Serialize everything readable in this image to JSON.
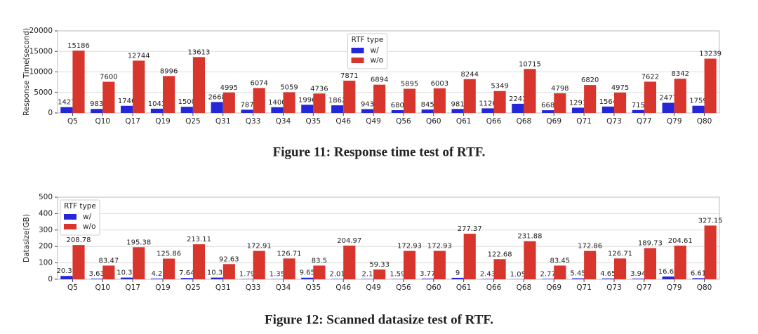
{
  "chart_data": [
    {
      "type": "bar",
      "y_label": "Response Time(second)",
      "caption": "Figure 11: Response time test of RTF.",
      "categories": [
        "Q5",
        "Q10",
        "Q17",
        "Q19",
        "Q25",
        "Q31",
        "Q33",
        "Q34",
        "Q35",
        "Q46",
        "Q49",
        "Q56",
        "Q60",
        "Q61",
        "Q66",
        "Q68",
        "Q69",
        "Q71",
        "Q73",
        "Q77",
        "Q79",
        "Q80"
      ],
      "series": [
        {
          "name": "w/",
          "color": "#2626d9",
          "values": [
            1427,
            983,
            1746,
            1043,
            1500,
            2668,
            787,
            1400,
            1996,
            1862,
            943,
            680,
            845,
            981,
            1126,
            2241,
            668,
            1291,
            1564,
            715,
            2477,
            1759
          ]
        },
        {
          "name": "w/o",
          "color": "#d8352d",
          "values": [
            15186,
            7600,
            12744,
            8996,
            13613,
            4995,
            6074,
            5059,
            4736,
            7871,
            6894,
            5895,
            6003,
            8244,
            5349,
            10715,
            4798,
            6820,
            4975,
            7622,
            8342,
            13239
          ]
        }
      ],
      "ylim": [
        0,
        20000
      ],
      "yticks": [
        0,
        5000,
        10000,
        15000,
        20000
      ],
      "grid": true,
      "legend_title": "RTF type",
      "legend": "upper center"
    },
    {
      "type": "bar",
      "y_label": "Datasize(GB)",
      "caption": "Figure 12: Scanned datasize test of RTF.",
      "categories": [
        "Q5",
        "Q10",
        "Q17",
        "Q19",
        "Q25",
        "Q31",
        "Q33",
        "Q34",
        "Q35",
        "Q46",
        "Q49",
        "Q56",
        "Q60",
        "Q61",
        "Q66",
        "Q68",
        "Q69",
        "Q71",
        "Q73",
        "Q77",
        "Q79",
        "Q80"
      ],
      "series": [
        {
          "name": "w/",
          "color": "#2626d9",
          "values": [
            20.32,
            3.63,
            10.33,
            4.2,
            7.64,
            10.31,
            1.79,
            1.35,
            9.65,
            2.01,
            2.1,
            1.59,
            3.77,
            9,
            2.43,
            1.05,
            2.77,
            5.45,
            4.65,
            3.94,
            16.62,
            6.61
          ]
        },
        {
          "name": "w/o",
          "color": "#d8352d",
          "values": [
            208.78,
            83.47,
            195.38,
            125.86,
            213.11,
            92.63,
            172.91,
            126.71,
            83.5,
            204.97,
            59.33,
            172.93,
            172.93,
            277.37,
            122.68,
            231.88,
            83.45,
            172.86,
            126.71,
            189.73,
            204.61,
            327.15
          ]
        }
      ],
      "ylim": [
        0,
        500
      ],
      "yticks": [
        0,
        100,
        200,
        300,
        400,
        500
      ],
      "grid": true,
      "legend_title": "RTF type",
      "legend": "upper left"
    }
  ]
}
